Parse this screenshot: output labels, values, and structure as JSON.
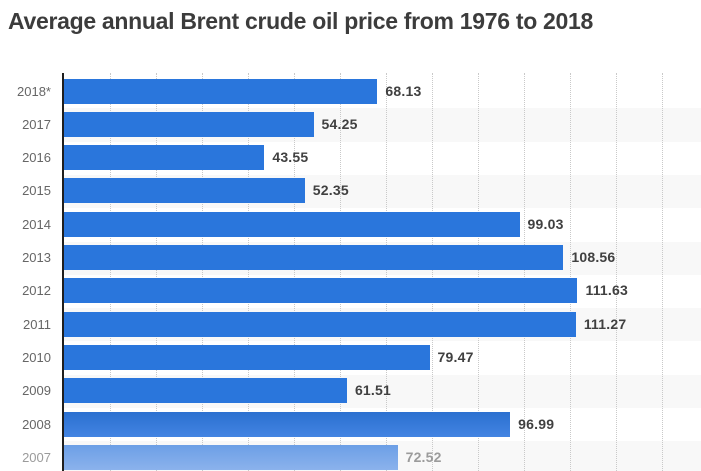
{
  "chart_data": {
    "type": "bar",
    "orientation": "horizontal",
    "title": "Average annual Brent crude oil price from 1976 to 2018",
    "categories": [
      "2018*",
      "2017",
      "2016",
      "2015",
      "2014",
      "2013",
      "2012",
      "2011",
      "2010",
      "2009",
      "2008",
      "2007"
    ],
    "values": [
      68.13,
      54.25,
      43.55,
      52.35,
      99.03,
      108.56,
      111.63,
      111.27,
      79.47,
      61.51,
      96.99,
      72.52
    ],
    "value_labels": [
      "68.13",
      "54.25",
      "43.55",
      "52.35",
      "99.03",
      "108.56",
      "111.63",
      "111.27",
      "79.47",
      "61.51",
      "96.99",
      "72.52"
    ],
    "bar_styles": [
      "solid",
      "solid",
      "solid",
      "solid",
      "solid",
      "solid",
      "solid",
      "solid",
      "solid",
      "solid",
      "gradient",
      "faded"
    ],
    "banded_rows": [
      1,
      3,
      5,
      7,
      9,
      11
    ],
    "xlim": [
      0,
      140
    ],
    "gridline_step": 10,
    "grid": true,
    "legend": "none"
  },
  "colors": {
    "bar": "#2a76dc",
    "bar_gradient_top": "#2b70d0",
    "bar_gradient_bottom": "#4384e2",
    "bar_faded_top": "#6c9fe6",
    "bar_faded_bottom": "#8bb2ec",
    "title_text": "#3c3c3c",
    "axis_label": "#666666",
    "value_label": "#404040",
    "faded_label": "#9b9b9b",
    "row_band": "#f8f8f8",
    "gridline": "#c9c9c9",
    "axis_line": "#1f1f1f",
    "background": "#ffffff"
  }
}
